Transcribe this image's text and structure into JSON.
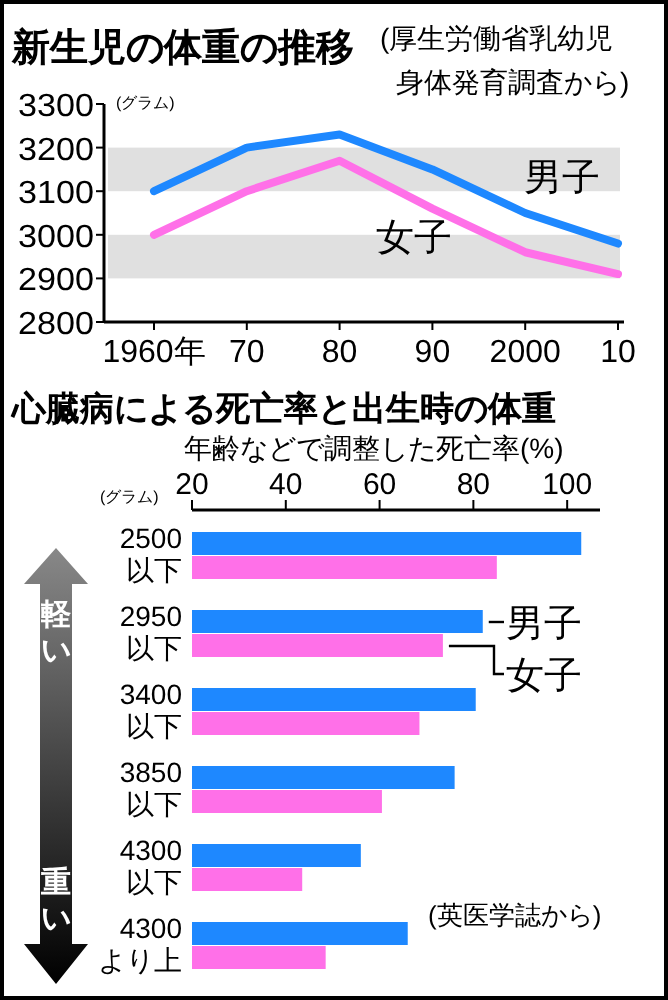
{
  "chart_data": [
    {
      "type": "line",
      "title": "新生児の体重の推移",
      "subtitle": "(厚生労働省乳幼児身体発育調査から)",
      "ylabel": "(グラム)",
      "categories": [
        "1960年",
        "70",
        "80",
        "90",
        "2000",
        "10"
      ],
      "series": [
        {
          "name": "男子",
          "color": "#1e88ff",
          "values": [
            3100,
            3200,
            3230,
            3150,
            3050,
            2980
          ]
        },
        {
          "name": "女子",
          "color": "#ff70e8",
          "values": [
            3000,
            3100,
            3170,
            3060,
            2960,
            2910
          ]
        }
      ],
      "ylim": [
        2800,
        3300
      ],
      "yticks": [
        2800,
        2900,
        3000,
        3100,
        3200,
        3300
      ],
      "bands": [
        {
          "axis": "y",
          "from": 2900,
          "to": 3000,
          "color": "#e0e0e0"
        },
        {
          "axis": "y",
          "from": 3100,
          "to": 3200,
          "color": "#e0e0e0"
        }
      ]
    },
    {
      "type": "bar",
      "orientation": "horizontal",
      "title": "心臓病による死亡率と出生時の体重",
      "xlabel": "年齢などで調整した死亡率(%)",
      "ylabel": "(グラム)",
      "categories": [
        "2500以下",
        "2950以下",
        "3400以下",
        "3850以下",
        "4300以下",
        "4300より上"
      ],
      "series": [
        {
          "name": "男子",
          "color": "#1e88ff",
          "values": [
            103,
            82,
            80.5,
            76,
            56,
            66
          ]
        },
        {
          "name": "女子",
          "color": "#ff70e8",
          "values": [
            85,
            73.5,
            68.5,
            60.5,
            43.5,
            48.5
          ]
        }
      ],
      "xlim": [
        20,
        107
      ],
      "xticks": [
        20,
        40,
        60,
        80,
        100
      ],
      "annotations": [
        "軽い",
        "重い",
        "(英医学誌から)"
      ]
    }
  ]
}
